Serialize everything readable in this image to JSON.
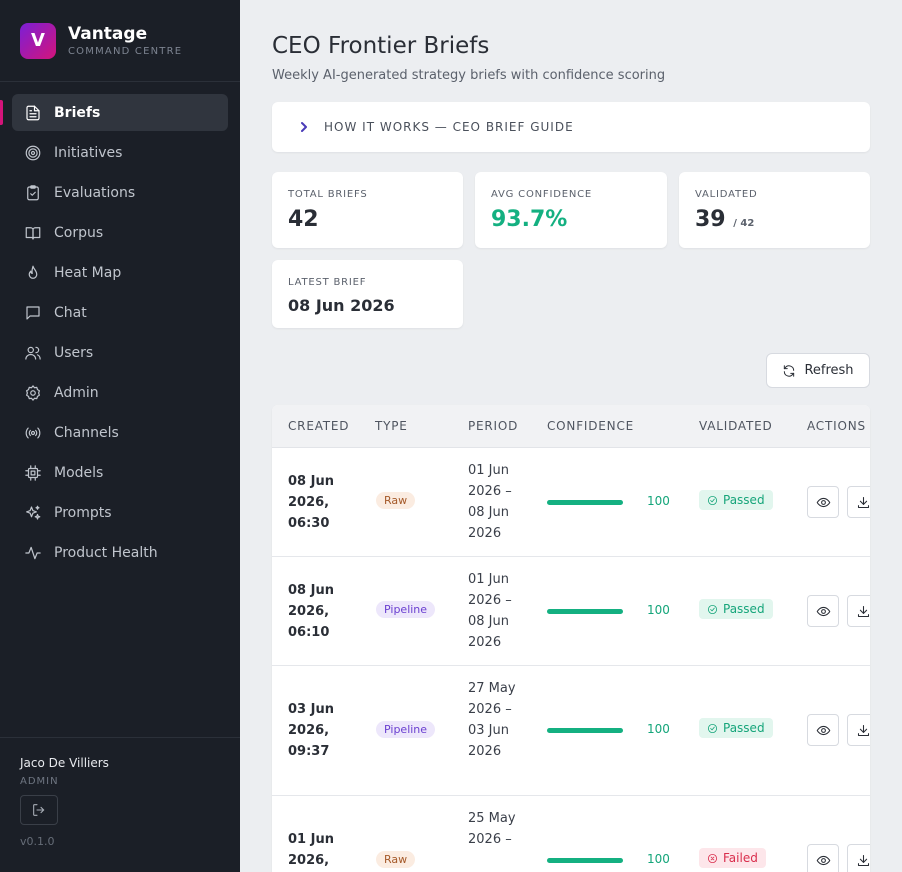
{
  "brand": {
    "logo_letter": "V",
    "name": "Vantage",
    "subtitle": "COMMAND CENTRE"
  },
  "sidebar": {
    "items": [
      {
        "label": "Briefs",
        "icon": "document-icon",
        "active": true
      },
      {
        "label": "Initiatives",
        "icon": "target-icon"
      },
      {
        "label": "Evaluations",
        "icon": "clipboard-check-icon"
      },
      {
        "label": "Corpus",
        "icon": "book-open-icon"
      },
      {
        "label": "Heat Map",
        "icon": "flame-icon"
      },
      {
        "label": "Chat",
        "icon": "chat-icon"
      },
      {
        "label": "Users",
        "icon": "users-icon"
      },
      {
        "label": "Admin",
        "icon": "gear-icon"
      },
      {
        "label": "Channels",
        "icon": "broadcast-icon"
      },
      {
        "label": "Models",
        "icon": "cpu-icon"
      },
      {
        "label": "Prompts",
        "icon": "sparkles-icon"
      },
      {
        "label": "Product Health",
        "icon": "activity-icon"
      }
    ],
    "user": {
      "name": "Jaco De Villiers",
      "role": "ADMIN"
    },
    "version": "v0.1.0"
  },
  "page": {
    "title": "CEO Frontier Briefs",
    "subtitle": "Weekly AI-generated strategy briefs with confidence scoring",
    "guide_label": "HOW IT WORKS — CEO BRIEF GUIDE"
  },
  "stats": {
    "total": {
      "label": "TOTAL BRIEFS",
      "value": "42"
    },
    "avg_confidence": {
      "label": "AVG CONFIDENCE",
      "value": "93.7%"
    },
    "validated": {
      "label": "VALIDATED",
      "value": "39",
      "total": "/ 42"
    },
    "latest": {
      "label": "LATEST BRIEF",
      "value": "08 Jun 2026"
    }
  },
  "toolbar": {
    "refresh_label": "Refresh"
  },
  "table": {
    "columns": [
      "CREATED",
      "TYPE",
      "PERIOD",
      "CONFIDENCE",
      "VALIDATED",
      "ACTIONS"
    ],
    "rows": [
      {
        "created": "08 Jun 2026, 06:30",
        "type": "Raw",
        "period": "01 Jun 2026 – 08 Jun 2026",
        "confidence": "100",
        "validated": "Passed"
      },
      {
        "created": "08 Jun 2026, 06:10",
        "type": "Pipeline",
        "period": "01 Jun 2026 – 08 Jun 2026",
        "confidence": "100",
        "validated": "Passed"
      },
      {
        "created": "03 Jun 2026, 09:37",
        "type": "Pipeline",
        "period": "27 May 2026 – 03 Jun 2026",
        "confidence": "100",
        "validated": "Passed"
      },
      {
        "created": "01 Jun 2026,",
        "type": "Raw",
        "period": "25 May 2026 –",
        "confidence": "100",
        "validated": "Failed"
      }
    ]
  },
  "colors": {
    "accent": "#d4147a",
    "success": "#14b081",
    "danger": "#d92d4c",
    "sidebar_bg": "#1b1f27"
  }
}
